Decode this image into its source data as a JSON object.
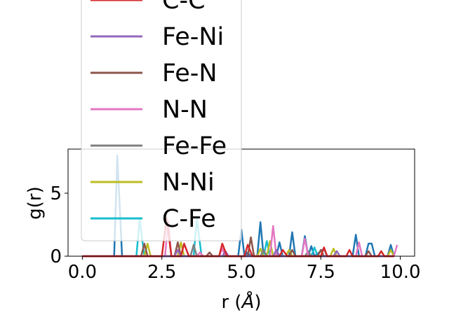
{
  "chart_data": {
    "type": "line",
    "xlabel": "r (",
    "xlabel_unit": "Å",
    "xlabel_close": ")",
    "ylabel": "g(r)",
    "xlim": [
      -0.45,
      10.45
    ],
    "ylim": [
      0,
      8.5
    ],
    "xticks": [
      0.0,
      2.5,
      5.0,
      7.5,
      10.0
    ],
    "xtick_labels": [
      "0.0",
      "2.5",
      "5.0",
      "7.5",
      "10.0"
    ],
    "yticks": [
      0,
      5
    ],
    "ytick_labels": [
      "0",
      "5"
    ],
    "grid": false,
    "legend_placement": "upper-left, overflowing above axes",
    "series": [
      {
        "name": "C-C",
        "color": "#d62728",
        "points": [
          [
            0,
            0
          ],
          [
            2.5,
            0
          ],
          [
            2.65,
            3.0
          ],
          [
            2.8,
            0
          ],
          [
            3.1,
            0
          ],
          [
            3.2,
            1.0
          ],
          [
            3.35,
            0
          ],
          [
            4.3,
            0
          ],
          [
            4.4,
            1.0
          ],
          [
            4.55,
            0
          ],
          [
            5.1,
            0
          ],
          [
            5.2,
            0.9
          ],
          [
            5.35,
            0
          ],
          [
            6.2,
            0
          ],
          [
            6.3,
            0.5
          ],
          [
            6.45,
            0
          ],
          [
            7.5,
            0
          ],
          [
            7.6,
            0.7
          ],
          [
            7.7,
            0
          ],
          [
            8.3,
            0
          ],
          [
            8.4,
            0.5
          ],
          [
            8.5,
            0
          ],
          [
            9.3,
            0
          ],
          [
            9.4,
            0.4
          ],
          [
            9.5,
            0
          ],
          [
            9.8,
            0
          ]
        ]
      },
      {
        "name": "Fe-Ni",
        "color": "#9467bd",
        "points": [
          [
            0,
            0
          ],
          [
            2.9,
            0
          ],
          [
            3.0,
            0.5
          ],
          [
            3.1,
            0
          ],
          [
            4.4,
            0
          ],
          [
            4.5,
            0.4
          ],
          [
            4.6,
            0
          ],
          [
            6.0,
            0
          ],
          [
            6.1,
            0.5
          ],
          [
            6.2,
            0
          ],
          [
            7.9,
            0
          ],
          [
            8.0,
            0.4
          ],
          [
            8.1,
            0
          ],
          [
            9.8,
            0
          ]
        ]
      },
      {
        "name": "Fe-N",
        "color": "#8c564b",
        "points": [
          [
            0,
            0
          ],
          [
            1.85,
            0
          ],
          [
            1.95,
            1.0
          ],
          [
            2.05,
            0
          ],
          [
            2.9,
            0
          ],
          [
            3.0,
            1.1
          ],
          [
            3.1,
            0
          ],
          [
            3.9,
            0
          ],
          [
            4.0,
            0.3
          ],
          [
            4.1,
            0
          ],
          [
            5.2,
            0
          ],
          [
            5.3,
            1.5
          ],
          [
            5.4,
            0
          ],
          [
            6.5,
            0
          ],
          [
            6.6,
            0.5
          ],
          [
            6.7,
            0
          ],
          [
            7.4,
            0
          ],
          [
            7.5,
            0.5
          ],
          [
            7.6,
            0
          ],
          [
            8.9,
            0
          ],
          [
            9.0,
            0.4
          ],
          [
            9.1,
            0
          ],
          [
            9.8,
            0
          ]
        ]
      },
      {
        "name": "N-N",
        "color": "#e377c2",
        "points": [
          [
            0,
            0
          ],
          [
            2.6,
            0
          ],
          [
            2.7,
            2.8
          ],
          [
            2.8,
            0
          ],
          [
            3.6,
            0
          ],
          [
            3.7,
            0.3
          ],
          [
            3.8,
            0
          ],
          [
            4.3,
            0
          ],
          [
            4.4,
            0.6
          ],
          [
            4.5,
            0
          ],
          [
            5.9,
            0
          ],
          [
            6.0,
            2.4
          ],
          [
            6.1,
            0
          ],
          [
            6.9,
            0
          ],
          [
            7.0,
            1.4
          ],
          [
            7.1,
            0
          ],
          [
            8.6,
            0
          ],
          [
            8.7,
            1.1
          ],
          [
            8.8,
            0
          ],
          [
            9.8,
            0
          ],
          [
            9.9,
            0.9
          ]
        ]
      },
      {
        "name": "Fe-Fe",
        "color": "#7f7f7f",
        "points": [
          [
            0,
            0
          ],
          [
            3.4,
            0
          ],
          [
            3.5,
            0.9
          ],
          [
            3.6,
            0
          ],
          [
            5.6,
            0
          ],
          [
            5.7,
            0.5
          ],
          [
            5.8,
            0
          ],
          [
            7.0,
            0
          ],
          [
            7.1,
            0.4
          ],
          [
            7.2,
            0
          ],
          [
            9.8,
            0
          ]
        ]
      },
      {
        "name": "N-Ni",
        "color": "#bcbd22",
        "points": [
          [
            0,
            0
          ],
          [
            1.95,
            0
          ],
          [
            2.05,
            1.0
          ],
          [
            2.15,
            0
          ],
          [
            3.0,
            0
          ],
          [
            3.1,
            1.1
          ],
          [
            3.2,
            0
          ],
          [
            5.5,
            0
          ],
          [
            5.6,
            0.6
          ],
          [
            5.7,
            0
          ],
          [
            5.8,
            0
          ],
          [
            5.9,
            1.2
          ],
          [
            6.0,
            0
          ],
          [
            6.4,
            0
          ],
          [
            6.5,
            0.5
          ],
          [
            6.6,
            0
          ],
          [
            7.8,
            0
          ],
          [
            7.9,
            0.6
          ],
          [
            8.0,
            0
          ],
          [
            9.6,
            0
          ],
          [
            9.7,
            0.5
          ],
          [
            9.8,
            0
          ]
        ]
      },
      {
        "name": "C-Fe",
        "color": "#17becf",
        "points": [
          [
            0,
            0
          ],
          [
            1.7,
            0
          ],
          [
            1.8,
            2.9
          ],
          [
            1.95,
            0
          ],
          [
            3.5,
            0
          ],
          [
            3.6,
            3.0
          ],
          [
            3.75,
            0
          ],
          [
            5.7,
            0
          ],
          [
            5.8,
            1.2
          ],
          [
            5.9,
            0
          ],
          [
            7.2,
            0
          ],
          [
            7.3,
            0.7
          ],
          [
            7.4,
            0
          ],
          [
            9.8,
            0
          ]
        ]
      },
      {
        "name": "",
        "color": "#1f77b4",
        "points": [
          [
            0,
            0
          ],
          [
            1.0,
            0
          ],
          [
            1.1,
            8.0
          ],
          [
            1.25,
            0
          ],
          [
            4.9,
            0
          ],
          [
            5.0,
            2.1
          ],
          [
            5.1,
            0
          ],
          [
            5.2,
            0.3
          ],
          [
            5.3,
            0
          ],
          [
            5.5,
            0
          ],
          [
            5.6,
            2.7
          ],
          [
            5.7,
            0
          ],
          [
            5.8,
            0
          ],
          [
            6.1,
            0
          ],
          [
            6.2,
            1.1
          ],
          [
            6.3,
            0
          ],
          [
            6.5,
            0
          ],
          [
            6.6,
            1.9
          ],
          [
            6.7,
            0
          ],
          [
            6.9,
            0
          ],
          [
            7.0,
            1.6
          ],
          [
            7.1,
            0
          ],
          [
            7.2,
            0.8
          ],
          [
            7.3,
            0
          ],
          [
            7.6,
            0.6
          ],
          [
            7.7,
            0
          ],
          [
            8.5,
            0
          ],
          [
            8.6,
            1.7
          ],
          [
            8.7,
            0
          ],
          [
            8.9,
            0
          ],
          [
            9.0,
            1.0
          ],
          [
            9.1,
            1.0
          ],
          [
            9.2,
            0
          ],
          [
            9.6,
            0
          ],
          [
            9.7,
            0.9
          ],
          [
            9.8,
            0
          ]
        ]
      }
    ]
  }
}
